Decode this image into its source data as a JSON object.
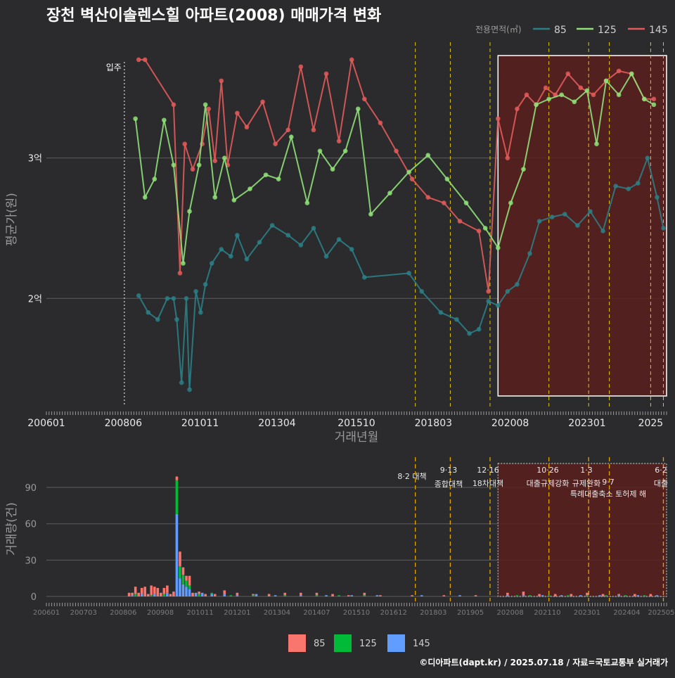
{
  "title": "장천 벽산이솔렌스힐 아파트(2008) 매매가격 변화",
  "footer": "©디아파트(dapt.kr) / 2025.07.18 / 자료=국토교통부 실거래가",
  "colors": {
    "background": "#2b2b2d",
    "s85": "#2a7f86",
    "s125": "#8fe078",
    "s145": "#e35a5a",
    "bar85": "#f8766d",
    "bar125": "#00ba38",
    "bar145": "#619cff",
    "highlight_fill": "#5a1e1e",
    "policy": "#e3c800",
    "policy_bar": "#e3a400"
  },
  "chart_data": [
    {
      "type": "line",
      "title": "장천 벽산이솔렌스힐 아파트(2008) 매매가격 변화",
      "xlabel": "거래년월",
      "ylabel": "평균가(원)",
      "xticks": [
        "200601",
        "200806",
        "201011",
        "201304",
        "201510",
        "201803",
        "202008",
        "202301",
        "2025"
      ],
      "yticks": [
        {
          "value": 2.0,
          "label": "2억"
        },
        {
          "value": 3.0,
          "label": "3억"
        }
      ],
      "xlim": [
        2006.0,
        2025.5
      ],
      "ylim": [
        1.23,
        3.9
      ],
      "move_in": {
        "x": 2008.45,
        "label": "입주"
      },
      "legend_title": "전용면적(㎡)",
      "legend": [
        "85",
        "125",
        "145"
      ],
      "highlight_range": [
        2020.2,
        2025.5
      ],
      "policy_lines": [
        2017.6,
        2018.7,
        2019.95,
        2021.8,
        2023.05,
        2023.7,
        2025.0,
        2025.4
      ],
      "series": [
        {
          "name": "145",
          "x": [
            2008.9,
            2009.1,
            2010.0,
            2010.2,
            2010.35,
            2010.6,
            2010.9,
            2011.1,
            2011.3,
            2011.5,
            2011.7,
            2012.0,
            2012.3,
            2012.8,
            2013.2,
            2013.6,
            2014.0,
            2014.4,
            2014.8,
            2015.2,
            2015.6,
            2016.0,
            2016.5,
            2017.0,
            2017.5,
            2018.0,
            2018.5,
            2019.0,
            2019.6,
            2019.9,
            2020.2,
            2020.5,
            2020.8,
            2021.1,
            2021.4,
            2021.7,
            2022.0,
            2022.4,
            2022.8,
            2023.2,
            2023.6,
            2024.0,
            2024.4,
            2024.8,
            2025.1
          ],
          "y": [
            3.7,
            3.7,
            3.38,
            2.18,
            3.1,
            2.92,
            3.1,
            3.35,
            2.98,
            3.55,
            2.95,
            3.32,
            3.22,
            3.4,
            3.1,
            3.2,
            3.65,
            3.2,
            3.6,
            3.12,
            3.7,
            3.42,
            3.25,
            3.05,
            2.85,
            2.72,
            2.68,
            2.55,
            2.48,
            2.05,
            3.28,
            3.0,
            3.35,
            3.45,
            3.38,
            3.5,
            3.45,
            3.6,
            3.5,
            3.45,
            3.55,
            3.62,
            3.6,
            3.42,
            3.42
          ]
        },
        {
          "name": "125",
          "x": [
            2008.8,
            2009.1,
            2009.4,
            2009.7,
            2010.0,
            2010.3,
            2010.5,
            2010.8,
            2011.0,
            2011.3,
            2011.6,
            2011.9,
            2012.4,
            2012.9,
            2013.3,
            2013.7,
            2014.2,
            2014.6,
            2015.0,
            2015.4,
            2015.8,
            2016.2,
            2016.8,
            2017.4,
            2018.0,
            2018.6,
            2019.2,
            2019.8,
            2020.2,
            2020.6,
            2021.0,
            2021.4,
            2021.8,
            2022.2,
            2022.6,
            2023.0,
            2023.3,
            2023.6,
            2024.0,
            2024.4,
            2024.8,
            2025.1
          ],
          "y": [
            3.28,
            2.72,
            2.85,
            3.27,
            2.95,
            2.25,
            2.62,
            2.95,
            3.38,
            2.72,
            3.0,
            2.7,
            2.78,
            2.88,
            2.85,
            3.15,
            2.68,
            3.05,
            2.92,
            3.05,
            3.35,
            2.6,
            2.75,
            2.9,
            3.02,
            2.85,
            2.68,
            2.5,
            2.36,
            2.68,
            2.92,
            3.38,
            3.42,
            3.45,
            3.4,
            3.48,
            3.1,
            3.55,
            3.45,
            3.6,
            3.42,
            3.38
          ]
        },
        {
          "name": "85",
          "x": [
            2008.9,
            2009.2,
            2009.5,
            2009.8,
            2010.0,
            2010.1,
            2010.25,
            2010.4,
            2010.5,
            2010.7,
            2010.85,
            2011.0,
            2011.2,
            2011.5,
            2011.8,
            2012.0,
            2012.3,
            2012.7,
            2013.1,
            2013.6,
            2014.0,
            2014.4,
            2014.8,
            2015.2,
            2015.6,
            2016.0,
            2017.4,
            2017.8,
            2018.4,
            2018.9,
            2019.3,
            2019.6,
            2019.9,
            2020.2,
            2020.5,
            2020.8,
            2021.2,
            2021.5,
            2021.9,
            2022.3,
            2022.7,
            2023.1,
            2023.5,
            2023.9,
            2024.3,
            2024.6,
            2024.9,
            2025.2,
            2025.4
          ],
          "y": [
            2.02,
            1.9,
            1.85,
            2.0,
            2.0,
            1.85,
            1.4,
            2.0,
            1.35,
            2.05,
            1.9,
            2.1,
            2.25,
            2.35,
            2.3,
            2.45,
            2.28,
            2.4,
            2.52,
            2.45,
            2.38,
            2.5,
            2.3,
            2.42,
            2.35,
            2.15,
            2.18,
            2.05,
            1.9,
            1.85,
            1.75,
            1.78,
            1.98,
            1.95,
            2.05,
            2.1,
            2.32,
            2.55,
            2.58,
            2.6,
            2.52,
            2.62,
            2.48,
            2.8,
            2.78,
            2.82,
            3.0,
            2.72,
            2.5
          ]
        }
      ]
    },
    {
      "type": "bar",
      "ylabel": "거래량(건)",
      "yticks": [
        0,
        30,
        60,
        90
      ],
      "ylim": [
        0,
        115
      ],
      "xticks": [
        "200601",
        "200703",
        "200806",
        "200908",
        "201011",
        "201201",
        "201304",
        "201407",
        "201510",
        "201612",
        "201803",
        "201905",
        "202008",
        "202110",
        "202301",
        "202404",
        "202505"
      ],
      "legend": [
        "85",
        "125",
        "145"
      ],
      "series": [
        {
          "name": "85",
          "x": [
            2008.6,
            2008.7,
            2008.8,
            2008.9,
            2009.0,
            2009.1,
            2009.2,
            2009.3,
            2009.4,
            2009.5,
            2009.6,
            2009.7,
            2009.8,
            2009.9,
            2010.0,
            2010.1,
            2010.2,
            2010.3,
            2010.4,
            2010.5,
            2010.6,
            2010.8,
            2011.0,
            2011.3,
            2011.6,
            2012.0,
            2012.5,
            2013.0,
            2013.5,
            2014.0,
            2014.5,
            2015.0,
            2015.5,
            2016.0,
            2016.5,
            2017.5,
            2018.5,
            2019.5,
            2020.5,
            2021.0,
            2021.5,
            2022.0,
            2022.5,
            2023.0,
            2023.5,
            2024.0,
            2024.5,
            2025.0
          ],
          "values": [
            3,
            2,
            6,
            3,
            5,
            8,
            2,
            8,
            6,
            7,
            3,
            5,
            6,
            2,
            4,
            3,
            12,
            6,
            4,
            8,
            3,
            2,
            2,
            2,
            3,
            2,
            1,
            2,
            2,
            2,
            2,
            2,
            1,
            2,
            1,
            1,
            1,
            1,
            2,
            3,
            2,
            2,
            2,
            2,
            2,
            1,
            2,
            2
          ]
        },
        {
          "name": "125",
          "x": [
            2008.8,
            2009.3,
            2009.7,
            2010.1,
            2010.2,
            2010.3,
            2010.4,
            2010.5,
            2010.8,
            2011.2,
            2011.8,
            2012.5,
            2013.5,
            2014.5,
            2015.2,
            2016.0,
            2020.8,
            2021.2,
            2021.8,
            2022.4,
            2023.0,
            2023.6,
            2024.2,
            2024.8
          ],
          "values": [
            2,
            1,
            2,
            28,
            10,
            8,
            5,
            3,
            2,
            1,
            1,
            1,
            1,
            1,
            1,
            1,
            1,
            1,
            1,
            1,
            1,
            1,
            1,
            1
          ]
        },
        {
          "name": "145",
          "x": [
            2008.7,
            2009.0,
            2009.4,
            2009.8,
            2010.1,
            2010.2,
            2010.3,
            2010.4,
            2010.5,
            2010.7,
            2010.9,
            2011.2,
            2011.6,
            2012.0,
            2012.6,
            2013.2,
            2014.0,
            2014.8,
            2015.6,
            2016.4,
            2017.8,
            2019.0,
            2020.5,
            2021.0,
            2021.6,
            2022.2,
            2022.8,
            2023.4,
            2024.0,
            2024.6,
            2025.2
          ],
          "values": [
            1,
            2,
            2,
            3,
            68,
            15,
            10,
            8,
            6,
            3,
            3,
            2,
            2,
            1,
            2,
            1,
            1,
            1,
            1,
            1,
            1,
            1,
            1,
            1,
            1,
            1,
            1,
            1,
            1,
            1,
            1
          ]
        }
      ],
      "policies": [
        {
          "x": 2017.6,
          "date": "8·2",
          "label": "대책"
        },
        {
          "x": 2018.7,
          "date": "9·13",
          "label": "종합대책"
        },
        {
          "x": 2019.95,
          "date": "12·16",
          "label": "18차대책"
        },
        {
          "x": 2021.8,
          "date": "10·26",
          "label": "대출규제강화"
        },
        {
          "x": 2023.05,
          "date": "1·3",
          "label": "규제완화"
        },
        {
          "x": 2023.7,
          "date": "9·7",
          "label": "특례대출축소 토허제 해"
        },
        {
          "x": 2025.4,
          "date": "6·2",
          "label": "대출"
        }
      ]
    }
  ]
}
